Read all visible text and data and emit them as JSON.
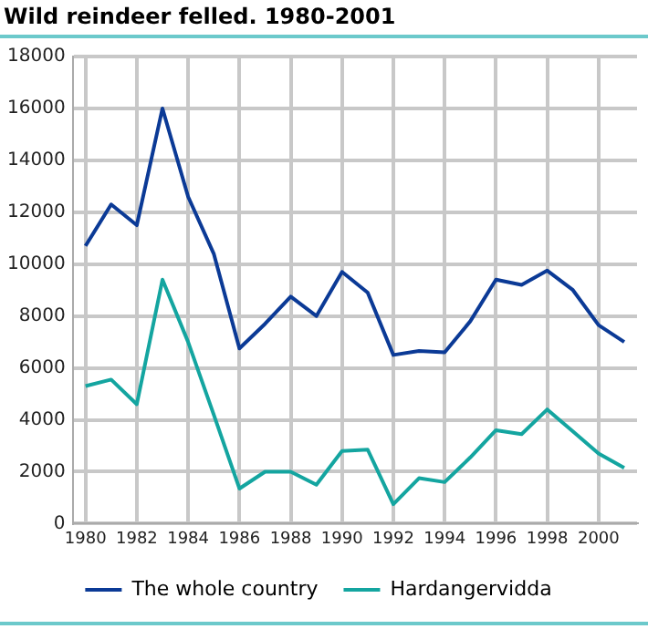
{
  "chart_data": {
    "type": "line",
    "title": "Wild reindeer felled. 1980-2001",
    "x": [
      1980,
      1981,
      1982,
      1983,
      1984,
      1985,
      1986,
      1987,
      1988,
      1989,
      1990,
      1991,
      1992,
      1993,
      1994,
      1995,
      1996,
      1997,
      1998,
      1999,
      2000,
      2001
    ],
    "series": [
      {
        "name": "The whole country",
        "color": "#0b3a96",
        "values": [
          10700,
          12300,
          11500,
          16000,
          12600,
          10400,
          6750,
          7700,
          8750,
          8000,
          9700,
          8900,
          6500,
          6650,
          6600,
          7800,
          9400,
          9200,
          9750,
          9000,
          7650,
          7000
        ]
      },
      {
        "name": "Hardangervidda",
        "color": "#14a5a0",
        "values": [
          5300,
          5550,
          4600,
          9400,
          7000,
          4200,
          1350,
          2000,
          2000,
          1500,
          2800,
          2850,
          750,
          1750,
          1600,
          2550,
          3600,
          3450,
          4400,
          3550,
          2700,
          2150
        ]
      }
    ],
    "xlim": [
      1979.5,
      2001.5
    ],
    "xticks": [
      1980,
      1982,
      1984,
      1986,
      1988,
      1990,
      1992,
      1994,
      1996,
      1998,
      2000
    ],
    "ylim": [
      0,
      18000
    ],
    "yticks": [
      0,
      2000,
      4000,
      6000,
      8000,
      10000,
      12000,
      14000,
      16000,
      18000
    ],
    "grid": true,
    "legend": "bottom",
    "marker": "none",
    "line_style": "solid"
  }
}
